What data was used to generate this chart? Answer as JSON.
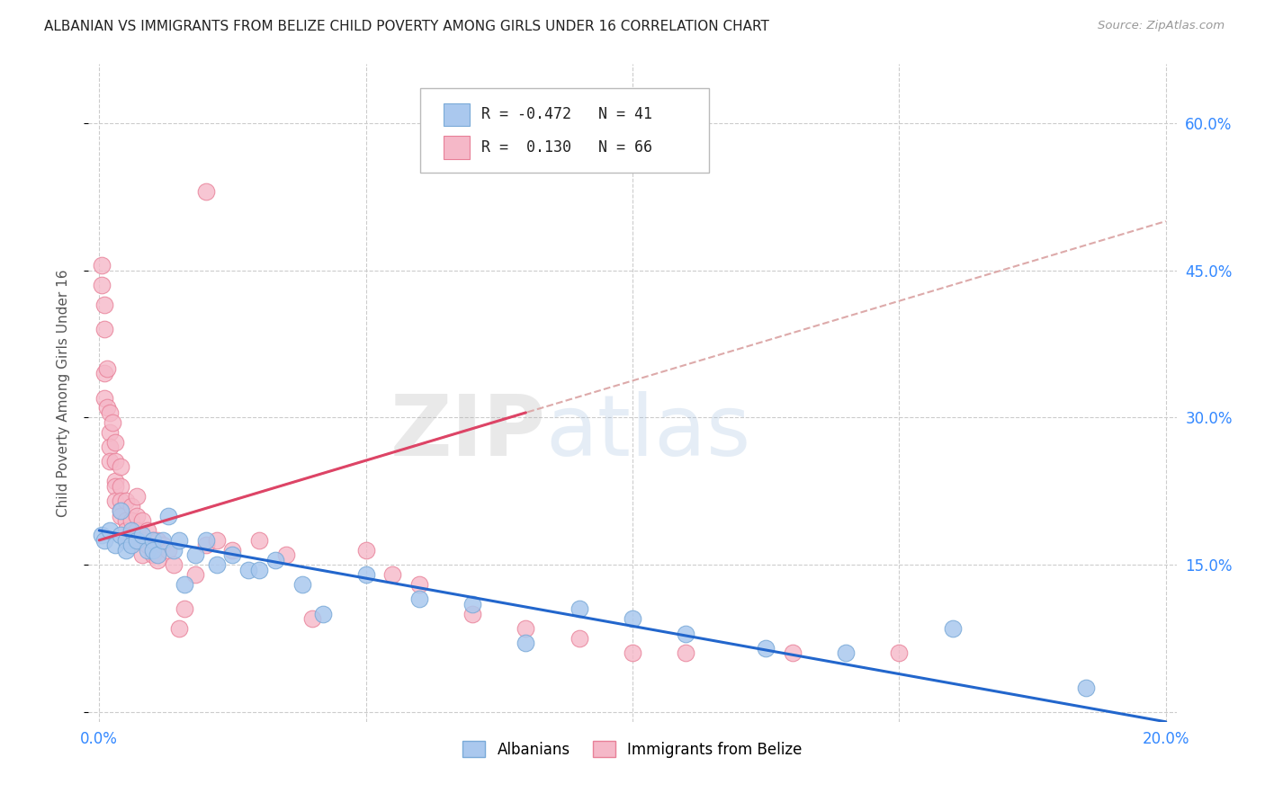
{
  "title": "ALBANIAN VS IMMIGRANTS FROM BELIZE CHILD POVERTY AMONG GIRLS UNDER 16 CORRELATION CHART",
  "source": "Source: ZipAtlas.com",
  "ylabel": "Child Poverty Among Girls Under 16",
  "background_color": "#ffffff",
  "grid_color": "#cccccc",
  "xlim": [
    -0.002,
    0.202
  ],
  "ylim": [
    -0.01,
    0.66
  ],
  "xticks": [
    0.0,
    0.05,
    0.1,
    0.15,
    0.2
  ],
  "xticklabels": [
    "0.0%",
    "",
    "",
    "",
    "20.0%"
  ],
  "yticks": [
    0.0,
    0.15,
    0.3,
    0.45,
    0.6
  ],
  "yticklabels": [
    "",
    "15.0%",
    "30.0%",
    "45.0%",
    "60.0%"
  ],
  "albanian_color": "#aac8ee",
  "albanian_edge": "#7aaad8",
  "belize_color": "#f5b8c8",
  "belize_edge": "#e88098",
  "trend_albanian_color": "#2266cc",
  "trend_belize_solid_color": "#dd4466",
  "trend_belize_dash_color": "#ddaaaa",
  "legend_r_albanian": "-0.472",
  "legend_n_albanian": "41",
  "legend_r_belize": "0.130",
  "legend_n_belize": "66",
  "watermark_zip": "ZIP",
  "watermark_atlas": "atlas",
  "albanian_x": [
    0.0005,
    0.001,
    0.002,
    0.003,
    0.004,
    0.004,
    0.005,
    0.005,
    0.006,
    0.006,
    0.007,
    0.008,
    0.009,
    0.01,
    0.01,
    0.011,
    0.012,
    0.013,
    0.014,
    0.015,
    0.016,
    0.018,
    0.02,
    0.022,
    0.025,
    0.028,
    0.03,
    0.033,
    0.038,
    0.042,
    0.05,
    0.06,
    0.07,
    0.08,
    0.09,
    0.1,
    0.11,
    0.125,
    0.14,
    0.16,
    0.185
  ],
  "albanian_y": [
    0.18,
    0.175,
    0.185,
    0.17,
    0.205,
    0.18,
    0.175,
    0.165,
    0.185,
    0.17,
    0.175,
    0.18,
    0.165,
    0.175,
    0.165,
    0.16,
    0.175,
    0.2,
    0.165,
    0.175,
    0.13,
    0.16,
    0.175,
    0.15,
    0.16,
    0.145,
    0.145,
    0.155,
    0.13,
    0.1,
    0.14,
    0.115,
    0.11,
    0.07,
    0.105,
    0.095,
    0.08,
    0.065,
    0.06,
    0.085,
    0.025
  ],
  "belize_x": [
    0.0005,
    0.0005,
    0.001,
    0.001,
    0.001,
    0.001,
    0.0015,
    0.0015,
    0.002,
    0.002,
    0.002,
    0.002,
    0.0025,
    0.003,
    0.003,
    0.003,
    0.003,
    0.003,
    0.004,
    0.004,
    0.004,
    0.004,
    0.004,
    0.005,
    0.005,
    0.005,
    0.005,
    0.006,
    0.006,
    0.006,
    0.006,
    0.007,
    0.007,
    0.007,
    0.008,
    0.008,
    0.008,
    0.009,
    0.009,
    0.01,
    0.01,
    0.011,
    0.011,
    0.012,
    0.013,
    0.014,
    0.015,
    0.016,
    0.018,
    0.02,
    0.022,
    0.025,
    0.03,
    0.035,
    0.04,
    0.05,
    0.055,
    0.06,
    0.07,
    0.08,
    0.09,
    0.1,
    0.11,
    0.13,
    0.15,
    0.02
  ],
  "belize_y": [
    0.455,
    0.435,
    0.415,
    0.39,
    0.345,
    0.32,
    0.35,
    0.31,
    0.305,
    0.285,
    0.27,
    0.255,
    0.295,
    0.275,
    0.255,
    0.235,
    0.23,
    0.215,
    0.25,
    0.23,
    0.215,
    0.205,
    0.2,
    0.215,
    0.195,
    0.185,
    0.175,
    0.21,
    0.195,
    0.18,
    0.175,
    0.22,
    0.2,
    0.185,
    0.195,
    0.175,
    0.16,
    0.185,
    0.17,
    0.175,
    0.16,
    0.175,
    0.155,
    0.17,
    0.165,
    0.15,
    0.085,
    0.105,
    0.14,
    0.17,
    0.175,
    0.165,
    0.175,
    0.16,
    0.095,
    0.165,
    0.14,
    0.13,
    0.1,
    0.085,
    0.075,
    0.06,
    0.06,
    0.06,
    0.06,
    0.53
  ],
  "belize_trend_x0": 0.0,
  "belize_trend_y0": 0.175,
  "belize_trend_x1": 0.08,
  "belize_trend_y1": 0.305,
  "albanian_trend_x0": 0.0,
  "albanian_trend_y0": 0.185,
  "albanian_trend_x1": 0.2,
  "albanian_trend_y1": -0.01
}
